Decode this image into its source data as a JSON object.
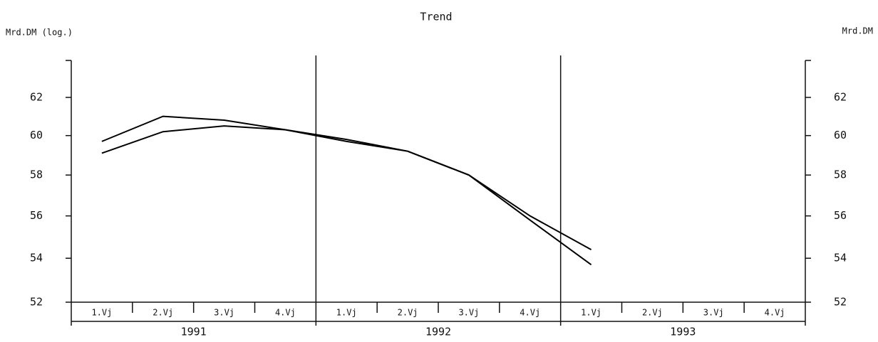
{
  "chart_data": {
    "type": "line",
    "title": "Trend",
    "y_label": "Mrd.DM (log.)",
    "y2_label": "Mrd.DM",
    "categories": [
      "1.Vj",
      "2.Vj",
      "3.Vj",
      "4.Vj",
      "1.Vj",
      "2.Vj",
      "3.Vj",
      "4.Vj",
      "1.Vj",
      "2.Vj",
      "3.Vj",
      "4.Vj"
    ],
    "groups": [
      "1991",
      "1992",
      "1993"
    ],
    "log_scale": true,
    "ylim": [
      52,
      64
    ],
    "yticks": [
      52,
      54,
      56,
      58,
      60,
      62
    ],
    "y2lim": [
      52,
      64
    ],
    "y2ticks": [
      52,
      54,
      56,
      58,
      60,
      62
    ],
    "series": [
      {
        "color": "#000000",
        "values": [
          59.7,
          61.0,
          60.8,
          60.3,
          59.8,
          59.2,
          58.0,
          56.0,
          54.4,
          null,
          null,
          null
        ]
      },
      {
        "color": "#000000",
        "values": [
          59.1,
          60.2,
          60.5,
          60.3,
          59.7,
          59.2,
          58.0,
          55.8,
          53.7,
          null,
          null,
          null
        ]
      }
    ]
  }
}
